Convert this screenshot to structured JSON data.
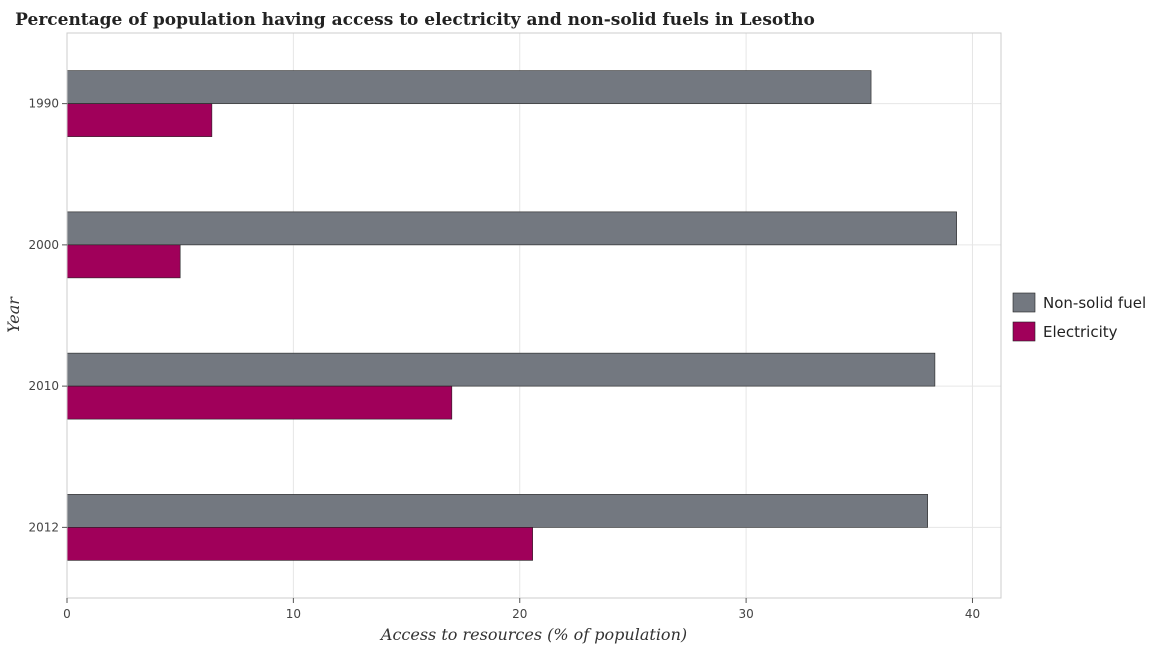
{
  "chart_data": {
    "type": "bar",
    "orientation": "horizontal",
    "title": "Percentage of population having access to electricity and non-solid fuels in Lesotho",
    "xlabel": "Access to resources (% of population)",
    "ylabel": "Year",
    "categories": [
      "1990",
      "2000",
      "2010",
      "2012"
    ],
    "series": [
      {
        "name": "Non-solid fuel",
        "color": "#737880",
        "values": [
          35.52,
          39.3,
          38.34,
          38.02
        ]
      },
      {
        "name": "Electricity",
        "color": "#a0005a",
        "values": [
          6.4,
          5.0,
          17.0,
          20.57
        ]
      }
    ],
    "xlim": [
      0,
      41.26
    ],
    "xticks": [
      "0",
      "10",
      "20",
      "30",
      "40"
    ],
    "grid": true,
    "legend_position": "right"
  }
}
